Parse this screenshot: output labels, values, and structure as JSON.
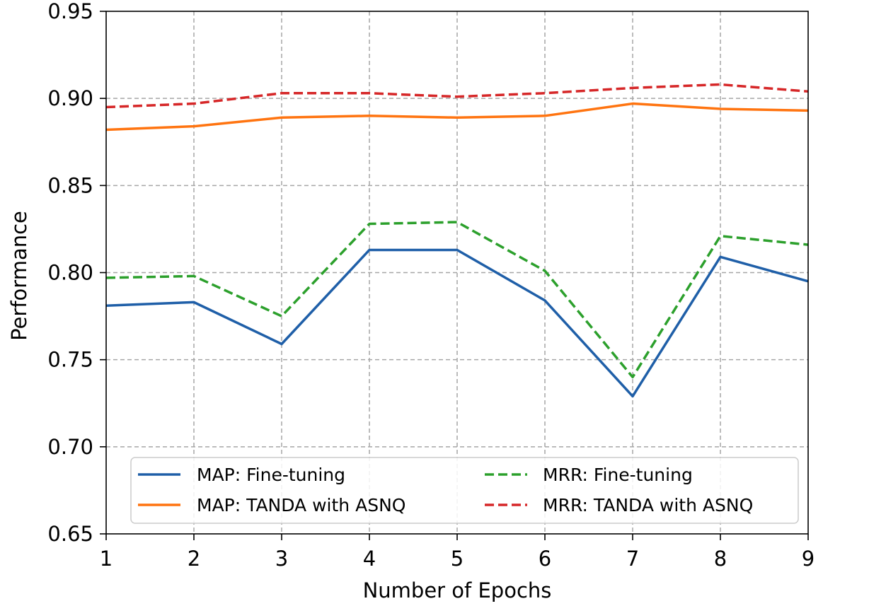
{
  "chart_data": {
    "type": "line",
    "title": "",
    "xlabel": "Number of Epochs",
    "ylabel": "Performance",
    "xlim": [
      1,
      9
    ],
    "ylim": [
      0.65,
      0.95
    ],
    "x": [
      1,
      2,
      3,
      4,
      5,
      6,
      7,
      8,
      9
    ],
    "xticks": [
      "1",
      "2",
      "3",
      "4",
      "5",
      "6",
      "7",
      "8",
      "9"
    ],
    "yticks": [
      "0.65",
      "0.70",
      "0.75",
      "0.80",
      "0.85",
      "0.90",
      "0.95"
    ],
    "ytick_values": [
      0.65,
      0.7,
      0.75,
      0.8,
      0.85,
      0.9,
      0.95
    ],
    "grid": true,
    "legend_position": "lower-center",
    "series": [
      {
        "name": "MAP: Fine-tuning",
        "color": "#1f5fa8",
        "style": "solid",
        "values": [
          0.781,
          0.783,
          0.759,
          0.813,
          0.813,
          0.784,
          0.729,
          0.809,
          0.795
        ]
      },
      {
        "name": "MAP: TANDA with ASNQ",
        "color": "#ff7410",
        "style": "solid",
        "values": [
          0.882,
          0.884,
          0.889,
          0.89,
          0.889,
          0.89,
          0.897,
          0.894,
          0.893
        ]
      },
      {
        "name": "MRR: Fine-tuning",
        "color": "#2ca02c",
        "style": "dashed",
        "values": [
          0.797,
          0.798,
          0.775,
          0.828,
          0.829,
          0.801,
          0.74,
          0.821,
          0.816
        ]
      },
      {
        "name": "MRR: TANDA with ASNQ",
        "color": "#d62728",
        "style": "dashed",
        "values": [
          0.895,
          0.897,
          0.903,
          0.903,
          0.901,
          0.903,
          0.906,
          0.908,
          0.904
        ]
      }
    ]
  }
}
